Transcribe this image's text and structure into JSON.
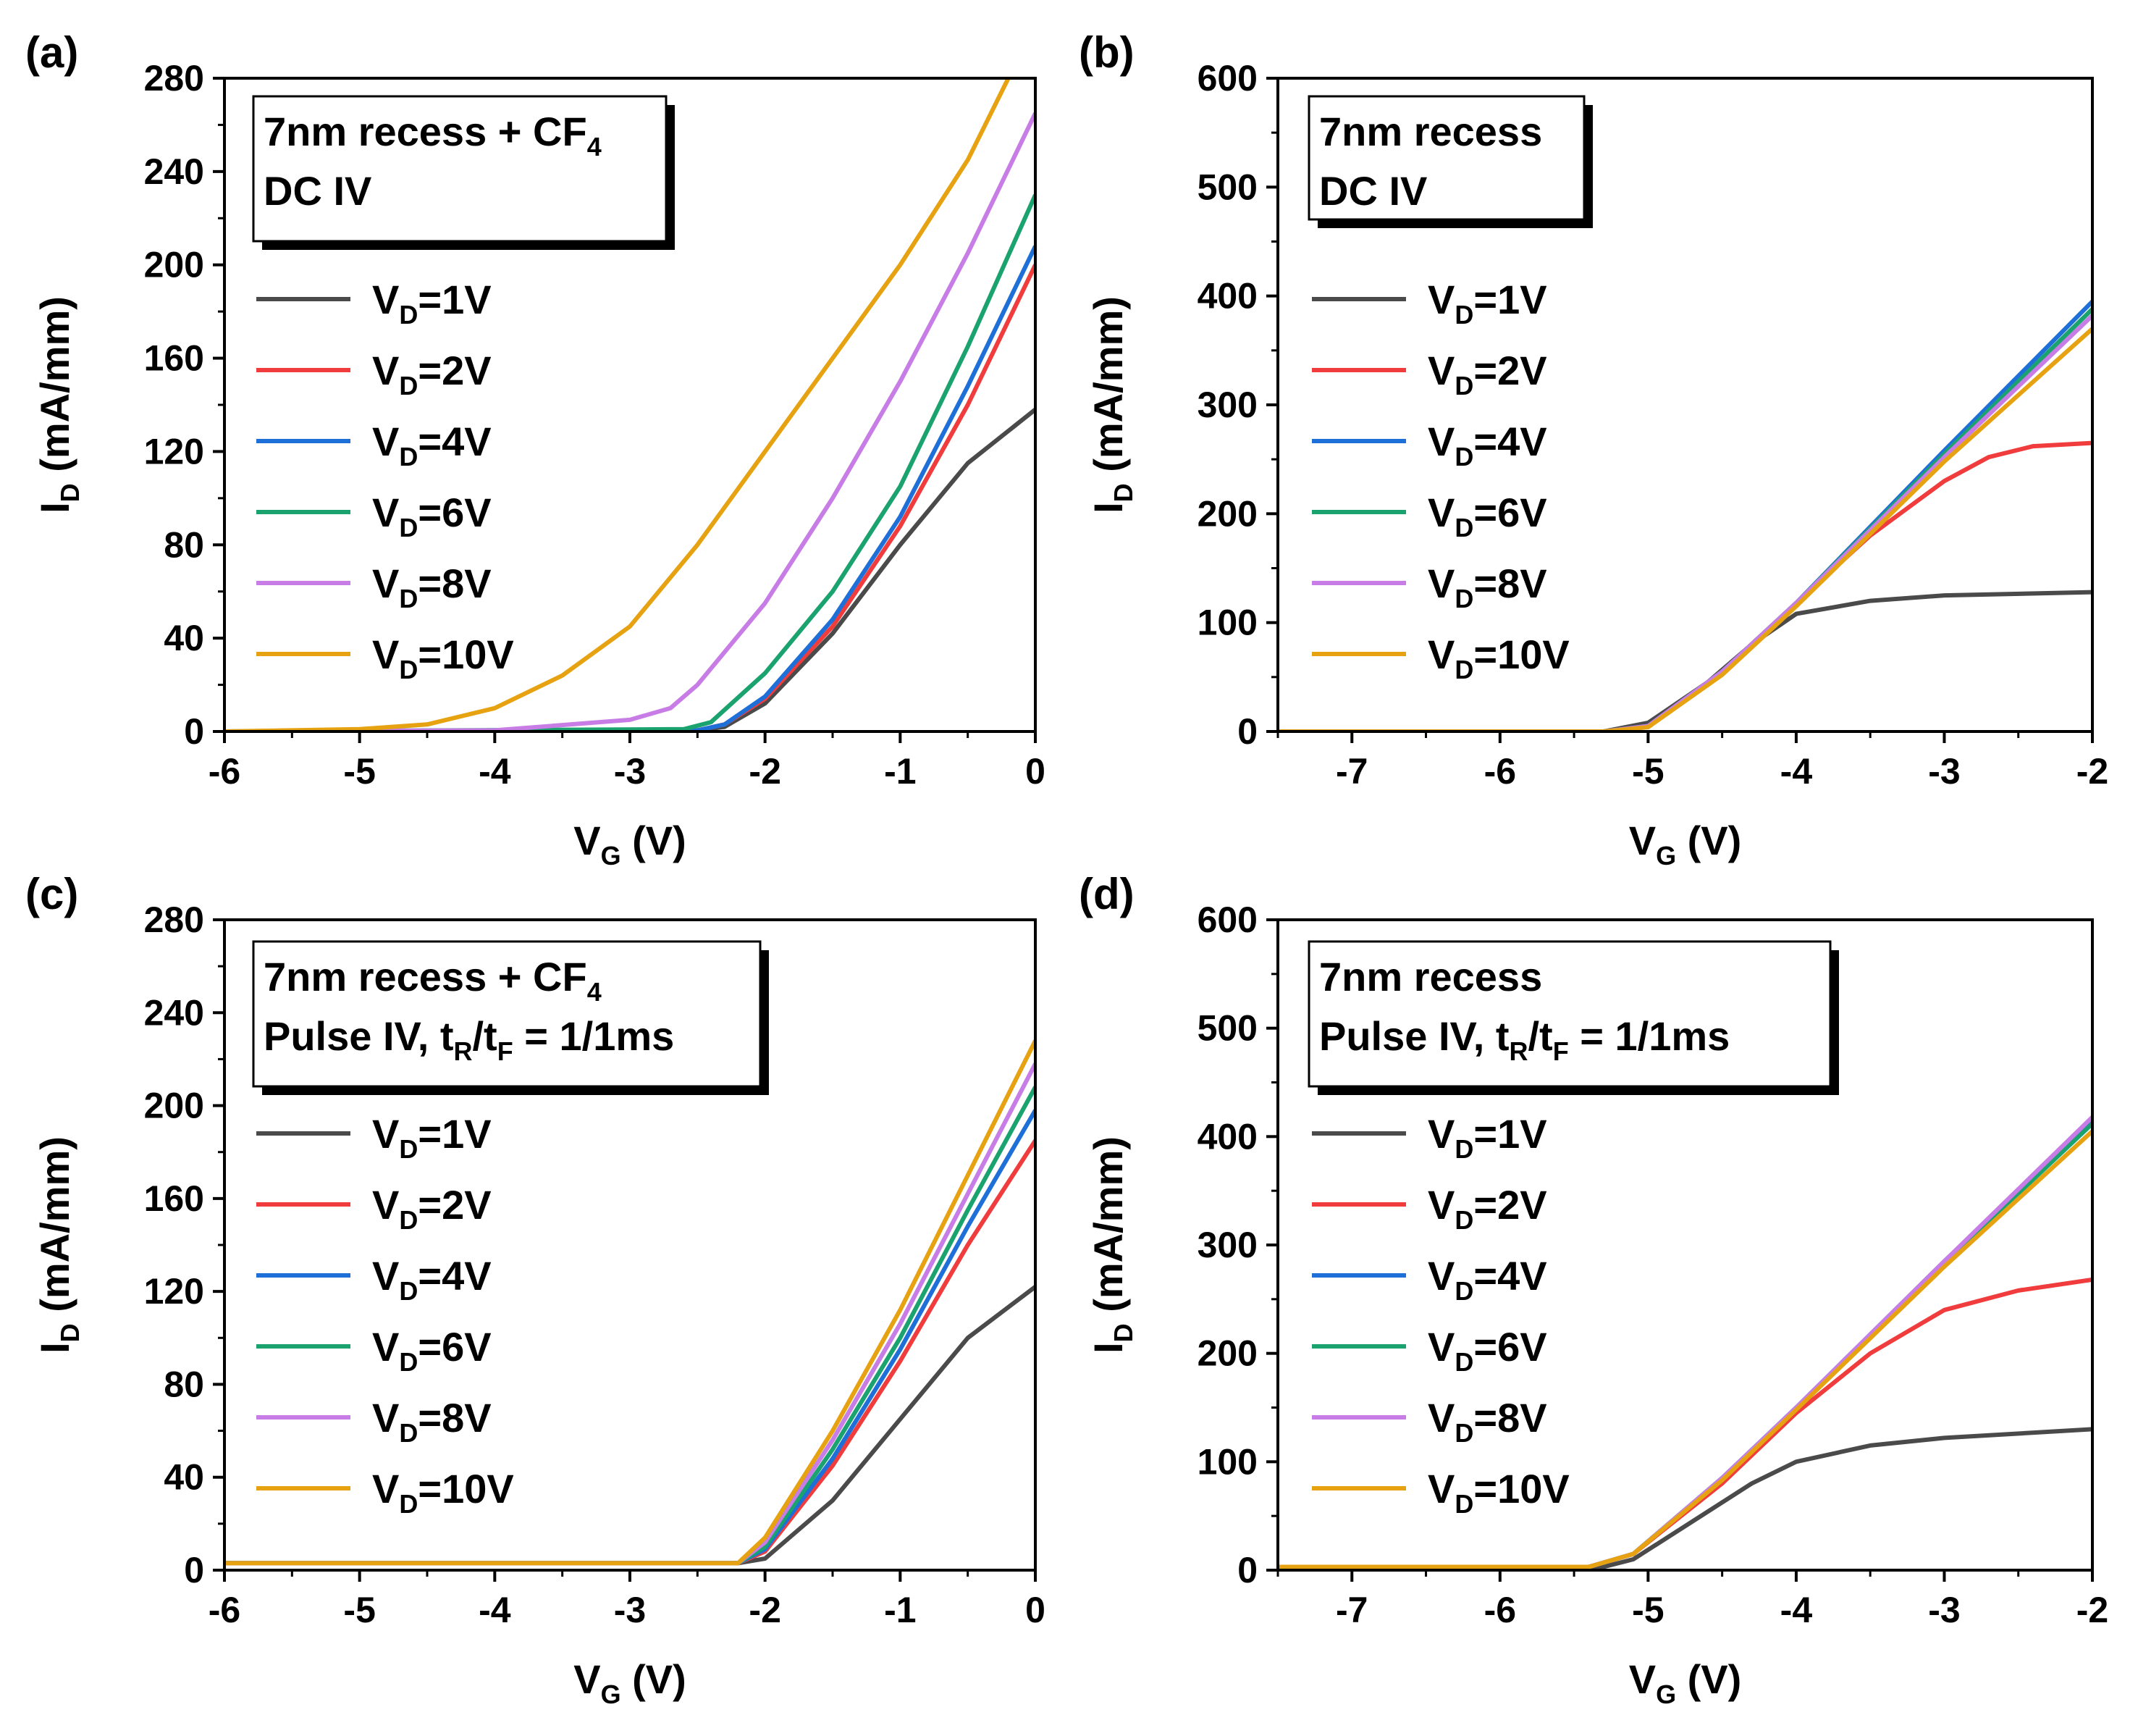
{
  "figure": {
    "panels": [
      "a",
      "b",
      "c",
      "d"
    ]
  },
  "chart_data": [
    {
      "id": "a",
      "panel_label": "(a)",
      "type": "line",
      "title_lines": [
        {
          "text": "7nm recess + CF",
          "sub": "4"
        },
        {
          "text": "DC IV"
        }
      ],
      "xlabel": {
        "main": "V",
        "sub": "G",
        "rest": " (V)"
      },
      "ylabel": {
        "main": "I",
        "sub": "D",
        "rest": " (mA/mm)"
      },
      "xlim": [
        -6,
        0
      ],
      "ylim": [
        0,
        280
      ],
      "xticks": [
        -6,
        -5,
        -4,
        -3,
        -2,
        -1,
        0
      ],
      "yticks": [
        0,
        40,
        80,
        120,
        160,
        200,
        240,
        280
      ],
      "series": [
        {
          "name": "VD=1V",
          "label_main": "V",
          "label_sub": "D",
          "label_rest": "=1V",
          "color": "#4a4a4a",
          "x": [
            -6,
            -3,
            -2.5,
            -2.3,
            -2.0,
            -1.5,
            -1.0,
            -0.5,
            0
          ],
          "y": [
            0,
            0,
            0.5,
            2,
            12,
            42,
            80,
            115,
            138
          ]
        },
        {
          "name": "VD=2V",
          "label_main": "V",
          "label_sub": "D",
          "label_rest": "=2V",
          "color": "#f03c3c",
          "x": [
            -6,
            -2.5,
            -2.3,
            -2.0,
            -1.5,
            -1.0,
            -0.5,
            0
          ],
          "y": [
            0,
            0.5,
            3,
            14,
            45,
            88,
            140,
            200
          ]
        },
        {
          "name": "VD=4V",
          "label_main": "V",
          "label_sub": "D",
          "label_rest": "=4V",
          "color": "#1f6fd8",
          "x": [
            -6,
            -2.5,
            -2.3,
            -2.0,
            -1.5,
            -1.0,
            -0.5,
            0
          ],
          "y": [
            0,
            0.5,
            3,
            15,
            48,
            92,
            148,
            208
          ]
        },
        {
          "name": "VD=6V",
          "label_main": "V",
          "label_sub": "D",
          "label_rest": "=6V",
          "color": "#1aa36f",
          "x": [
            -6,
            -2.6,
            -2.4,
            -2.0,
            -1.5,
            -1.0,
            -0.5,
            0
          ],
          "y": [
            0,
            1,
            4,
            25,
            60,
            105,
            165,
            230
          ]
        },
        {
          "name": "VD=8V",
          "label_main": "V",
          "label_sub": "D",
          "label_rest": "=8V",
          "color": "#c77ce6",
          "x": [
            -6,
            -4,
            -3.0,
            -2.7,
            -2.5,
            -2.0,
            -1.5,
            -1.0,
            -0.5,
            0
          ],
          "y": [
            0,
            0.5,
            5,
            10,
            20,
            55,
            100,
            150,
            205,
            265
          ]
        },
        {
          "name": "VD=10V",
          "label_main": "V",
          "label_sub": "D",
          "label_rest": "=10V",
          "color": "#e6a210",
          "x": [
            -6,
            -5,
            -4.5,
            -4.0,
            -3.5,
            -3.0,
            -2.5,
            -2.0,
            -1.5,
            -1.0,
            -0.5,
            -0.2
          ],
          "y": [
            0,
            1,
            3,
            10,
            24,
            45,
            80,
            120,
            160,
            200,
            245,
            280
          ]
        }
      ]
    },
    {
      "id": "b",
      "panel_label": "(b)",
      "type": "line",
      "title_lines": [
        {
          "text": "7nm recess"
        },
        {
          "text": "DC IV"
        }
      ],
      "xlabel": {
        "main": "V",
        "sub": "G",
        "rest": " (V)"
      },
      "ylabel": {
        "main": "I",
        "sub": "D",
        "rest": " (mA/mm)"
      },
      "xlim": [
        -7.5,
        -2
      ],
      "ylim": [
        0,
        600
      ],
      "xticks": [
        -7,
        -6,
        -5,
        -4,
        -3,
        -2
      ],
      "yticks": [
        0,
        100,
        200,
        300,
        400,
        500,
        600
      ],
      "series": [
        {
          "name": "VD=1V",
          "label_main": "V",
          "label_sub": "D",
          "label_rest": "=1V",
          "color": "#4a4a4a",
          "x": [
            -7.5,
            -5.3,
            -5.0,
            -4.6,
            -4.3,
            -4.0,
            -3.5,
            -3.0,
            -2.0
          ],
          "y": [
            0,
            0,
            8,
            45,
            80,
            108,
            120,
            125,
            128
          ]
        },
        {
          "name": "VD=2V",
          "label_main": "V",
          "label_sub": "D",
          "label_rest": "=2V",
          "color": "#f03c3c",
          "x": [
            -7.5,
            -5.3,
            -5.0,
            -4.5,
            -4.0,
            -3.5,
            -3.0,
            -2.7,
            -2.4,
            -2.0
          ],
          "y": [
            0,
            0,
            5,
            55,
            118,
            180,
            230,
            252,
            262,
            265
          ]
        },
        {
          "name": "VD=4V",
          "label_main": "V",
          "label_sub": "D",
          "label_rest": "=4V",
          "color": "#1f6fd8",
          "x": [
            -7.5,
            -5.3,
            -5.0,
            -4.5,
            -4.0,
            -3.0,
            -2.0
          ],
          "y": [
            0,
            0,
            5,
            55,
            118,
            258,
            395
          ]
        },
        {
          "name": "VD=6V",
          "label_main": "V",
          "label_sub": "D",
          "label_rest": "=6V",
          "color": "#1aa36f",
          "x": [
            -7.5,
            -5.3,
            -5.0,
            -4.5,
            -4.0,
            -3.0,
            -2.0
          ],
          "y": [
            0,
            0,
            5,
            55,
            118,
            255,
            388
          ]
        },
        {
          "name": "VD=8V",
          "label_main": "V",
          "label_sub": "D",
          "label_rest": "=8V",
          "color": "#c77ce6",
          "x": [
            -7.5,
            -5.3,
            -5.0,
            -4.5,
            -4.0,
            -3.0,
            -2.0
          ],
          "y": [
            0,
            0,
            5,
            55,
            118,
            252,
            382
          ]
        },
        {
          "name": "VD=10V",
          "label_main": "V",
          "label_sub": "D",
          "label_rest": "=10V",
          "color": "#e6a210",
          "x": [
            -7.5,
            -5.3,
            -5.0,
            -4.5,
            -4.0,
            -3.0,
            -2.0
          ],
          "y": [
            0,
            0,
            4,
            52,
            115,
            248,
            370
          ]
        }
      ]
    },
    {
      "id": "c",
      "panel_label": "(c)",
      "type": "line",
      "title_lines": [
        {
          "text": "7nm recess + CF",
          "sub": "4"
        },
        {
          "text": "Pulse IV, t",
          "sub": "R",
          "mid": "/t",
          "sub2": "F",
          "rest": " = 1/1ms"
        }
      ],
      "xlabel": {
        "main": "V",
        "sub": "G",
        "rest": " (V)"
      },
      "ylabel": {
        "main": "I",
        "sub": "D",
        "rest": " (mA/mm)"
      },
      "xlim": [
        -6,
        0
      ],
      "ylim": [
        0,
        280
      ],
      "xticks": [
        -6,
        -5,
        -4,
        -3,
        -2,
        -1,
        0
      ],
      "yticks": [
        0,
        40,
        80,
        120,
        160,
        200,
        240,
        280
      ],
      "series": [
        {
          "name": "VD=1V",
          "label_main": "V",
          "label_sub": "D",
          "label_rest": "=1V",
          "color": "#4a4a4a",
          "x": [
            -6,
            -2.2,
            -2.0,
            -1.5,
            -1.0,
            -0.5,
            0
          ],
          "y": [
            3,
            3,
            5,
            30,
            65,
            100,
            122
          ]
        },
        {
          "name": "VD=2V",
          "label_main": "V",
          "label_sub": "D",
          "label_rest": "=2V",
          "color": "#f03c3c",
          "x": [
            -6,
            -2.2,
            -2.0,
            -1.5,
            -1.0,
            -0.5,
            0
          ],
          "y": [
            3,
            3,
            8,
            45,
            90,
            140,
            185
          ]
        },
        {
          "name": "VD=4V",
          "label_main": "V",
          "label_sub": "D",
          "label_rest": "=4V",
          "color": "#1f6fd8",
          "x": [
            -6,
            -2.2,
            -2.0,
            -1.5,
            -1.0,
            -0.5,
            0
          ],
          "y": [
            3,
            3,
            9,
            48,
            95,
            148,
            198
          ]
        },
        {
          "name": "VD=6V",
          "label_main": "V",
          "label_sub": "D",
          "label_rest": "=6V",
          "color": "#1aa36f",
          "x": [
            -6,
            -2.2,
            -2.0,
            -1.5,
            -1.0,
            -0.5,
            0
          ],
          "y": [
            3,
            3,
            10,
            52,
            100,
            155,
            208
          ]
        },
        {
          "name": "VD=8V",
          "label_main": "V",
          "label_sub": "D",
          "label_rest": "=8V",
          "color": "#c77ce6",
          "x": [
            -6,
            -2.2,
            -2.0,
            -1.5,
            -1.0,
            -0.5,
            0
          ],
          "y": [
            3,
            3,
            12,
            56,
            106,
            162,
            218
          ]
        },
        {
          "name": "VD=10V",
          "label_main": "V",
          "label_sub": "D",
          "label_rest": "=10V",
          "color": "#e6a210",
          "x": [
            -6,
            -2.2,
            -2.0,
            -1.5,
            -1.0,
            -0.5,
            0
          ],
          "y": [
            3,
            3,
            14,
            60,
            112,
            170,
            228
          ]
        }
      ]
    },
    {
      "id": "d",
      "panel_label": "(d)",
      "type": "line",
      "title_lines": [
        {
          "text": "7nm recess"
        },
        {
          "text": "Pulse IV, t",
          "sub": "R",
          "mid": "/t",
          "sub2": "F",
          "rest": " = 1/1ms"
        }
      ],
      "xlabel": {
        "main": "V",
        "sub": "G",
        "rest": " (V)"
      },
      "ylabel": {
        "main": "I",
        "sub": "D",
        "rest": " (mA/mm)"
      },
      "xlim": [
        -7.5,
        -2
      ],
      "ylim": [
        0,
        600
      ],
      "xticks": [
        -7,
        -6,
        -5,
        -4,
        -3,
        -2
      ],
      "yticks": [
        0,
        100,
        200,
        300,
        400,
        500,
        600
      ],
      "series": [
        {
          "name": "VD=1V",
          "label_main": "V",
          "label_sub": "D",
          "label_rest": "=1V",
          "color": "#4a4a4a",
          "x": [
            -7.5,
            -5.3,
            -5.1,
            -4.7,
            -4.3,
            -4.0,
            -3.5,
            -3.0,
            -2.0
          ],
          "y": [
            3,
            3,
            10,
            45,
            80,
            100,
            115,
            122,
            130
          ]
        },
        {
          "name": "VD=2V",
          "label_main": "V",
          "label_sub": "D",
          "label_rest": "=2V",
          "color": "#f03c3c",
          "x": [
            -7.5,
            -5.4,
            -5.1,
            -4.5,
            -4.0,
            -3.5,
            -3.0,
            -2.5,
            -2.0
          ],
          "y": [
            3,
            3,
            15,
            80,
            145,
            200,
            240,
            258,
            268
          ]
        },
        {
          "name": "VD=4V",
          "label_main": "V",
          "label_sub": "D",
          "label_rest": "=4V",
          "color": "#1f6fd8",
          "x": [
            -7.5,
            -5.4,
            -5.1,
            -4.5,
            -4.0,
            -3.0,
            -2.0
          ],
          "y": [
            3,
            3,
            15,
            85,
            150,
            285,
            415
          ]
        },
        {
          "name": "VD=6V",
          "label_main": "V",
          "label_sub": "D",
          "label_rest": "=6V",
          "color": "#1aa36f",
          "x": [
            -7.5,
            -5.4,
            -5.1,
            -4.5,
            -4.0,
            -3.0,
            -2.0
          ],
          "y": [
            3,
            3,
            15,
            85,
            150,
            283,
            412
          ]
        },
        {
          "name": "VD=8V",
          "label_main": "V",
          "label_sub": "D",
          "label_rest": "=8V",
          "color": "#c77ce6",
          "x": [
            -7.5,
            -5.4,
            -5.1,
            -4.5,
            -4.0,
            -3.0,
            -2.0
          ],
          "y": [
            3,
            3,
            15,
            85,
            150,
            285,
            418
          ]
        },
        {
          "name": "VD=10V",
          "label_main": "V",
          "label_sub": "D",
          "label_rest": "=10V",
          "color": "#e6a210",
          "x": [
            -7.5,
            -5.4,
            -5.1,
            -4.5,
            -4.0,
            -3.0,
            -2.0
          ],
          "y": [
            3,
            3,
            15,
            83,
            148,
            280,
            405
          ]
        }
      ]
    }
  ]
}
